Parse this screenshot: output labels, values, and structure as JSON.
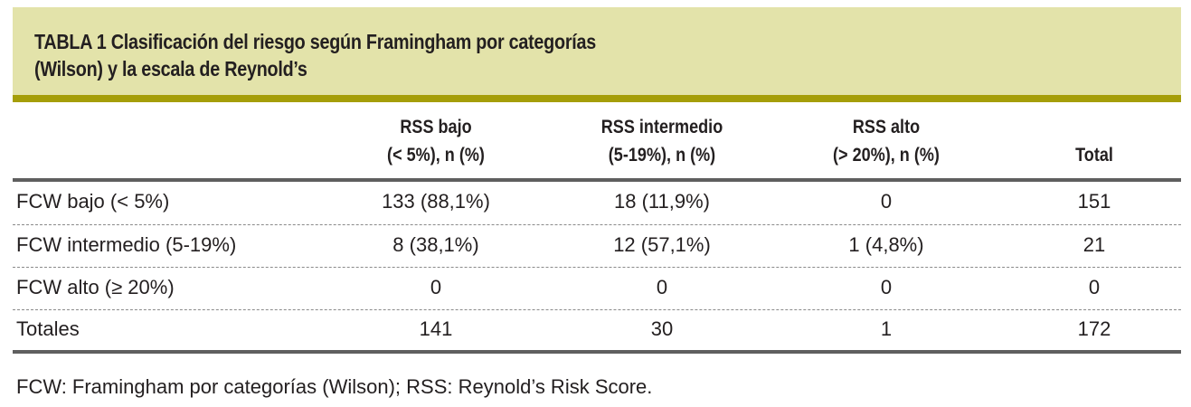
{
  "table": {
    "title_line1": "TABLA 1 Clasificación del riesgo según Framingham por categorías",
    "title_line2": "(Wilson) y la escala de Reynold’s",
    "columns": [
      {
        "line1": "RSS bajo",
        "line2": "(< 5%), n (%)"
      },
      {
        "line1": "RSS intermedio",
        "line2": "(5-19%), n (%)"
      },
      {
        "line1": "RSS alto",
        "line2": "(> 20%), n (%)"
      },
      {
        "line1": "",
        "line2": "Total"
      }
    ],
    "rows": [
      {
        "label": "FCW bajo (< 5%)",
        "cells": [
          "133 (88,1%)",
          "18 (11,9%)",
          "0",
          "151"
        ]
      },
      {
        "label": "FCW intermedio (5-19%)",
        "cells": [
          "8 (38,1%)",
          "12 (57,1%)",
          "1 (4,8%)",
          "21"
        ]
      },
      {
        "label": "FCW alto (≥ 20%)",
        "cells": [
          "0",
          "0",
          "0",
          "0"
        ]
      },
      {
        "label": "Totales",
        "cells": [
          "141",
          "30",
          "1",
          "172"
        ]
      }
    ],
    "footnote": "FCW: Framingham por categorías (Wilson); RSS: Reynold’s Risk Score."
  }
}
